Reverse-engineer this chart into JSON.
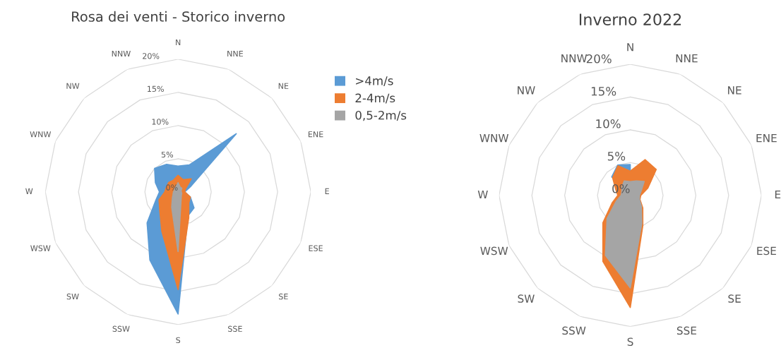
{
  "chart_data": [
    {
      "type": "radar",
      "title": "Rosa dei venti - Storico inverno",
      "categories": [
        "N",
        "NNE",
        "NE",
        "ENE",
        "E",
        "ESE",
        "SE",
        "SSE",
        "S",
        "SSW",
        "SW",
        "WSW",
        "W",
        "WNW",
        "NW",
        "NNW"
      ],
      "ylim": [
        0,
        20
      ],
      "yticks": [
        {
          "value": 0,
          "label": "0%"
        },
        {
          "value": 5,
          "label": "5%"
        },
        {
          "value": 10,
          "label": "10%"
        },
        {
          "value": 15,
          "label": "15%"
        },
        {
          "value": 20,
          "label": "20%"
        }
      ],
      "grid": true,
      "legend": "right",
      "series": [
        {
          "name": ">4m/s",
          "color": "#5b9bd5",
          "values": [
            3.9,
            4.4,
            12.4,
            2.0,
            1.0,
            2.0,
            3.4,
            3.9,
            18.4,
            11.1,
            6.6,
            3.7,
            2.8,
            3.7,
            5.0,
            4.5
          ]
        },
        {
          "name": "2-4m/s",
          "color": "#ed7d31",
          "values": [
            2.5,
            2.0,
            2.8,
            1.2,
            1.0,
            2.0,
            2.3,
            4.2,
            14.7,
            6.4,
            3.9,
            3.1,
            2.0,
            1.9,
            2.0,
            1.9
          ]
        },
        {
          "name": "0,5-2m/s",
          "color": "#a5a5a5",
          "values": [
            1.4,
            0.8,
            0.8,
            0.5,
            0.5,
            0.6,
            0.7,
            1.2,
            9.0,
            2.5,
            1.2,
            0.8,
            0.7,
            0.6,
            0.7,
            0.8
          ]
        }
      ]
    },
    {
      "type": "radar",
      "title": "Inverno 2022",
      "categories": [
        "N",
        "NNE",
        "NE",
        "ENE",
        "E",
        "ESE",
        "SE",
        "SSE",
        "S",
        "SSW",
        "SW",
        "WSW",
        "W",
        "WNW",
        "NW",
        "NNW"
      ],
      "ylim": [
        0,
        20
      ],
      "yticks": [
        {
          "value": 0,
          "label": "0%"
        },
        {
          "value": 5,
          "label": "5%"
        },
        {
          "value": 10,
          "label": "10%"
        },
        {
          "value": 15,
          "label": "15%"
        },
        {
          "value": 20,
          "label": "20%"
        }
      ],
      "grid": true,
      "series": [
        {
          "color": "#5b9bd5",
          "values": [
            4.7,
            null,
            null,
            null,
            null,
            null,
            null,
            null,
            null,
            null,
            null,
            null,
            null,
            null,
            4.0,
            5.0
          ]
        },
        {
          "color": "#ed7d31",
          "values": [
            3.7,
            5.9,
            5.6,
            2.9,
            1.6,
            1.6,
            2.7,
            5.0,
            17.1,
            10.9,
            5.9,
            3.0,
            1.9,
            2.4,
            3.8,
            4.9
          ]
        },
        {
          "color": "#a5a5a5",
          "values": [
            2.1,
            2.4,
            3.0,
            1.8,
            1.4,
            1.5,
            2.4,
            4.6,
            14.1,
            9.9,
            5.0,
            2.3,
            1.4,
            1.4,
            1.8,
            2.4
          ]
        }
      ]
    }
  ]
}
